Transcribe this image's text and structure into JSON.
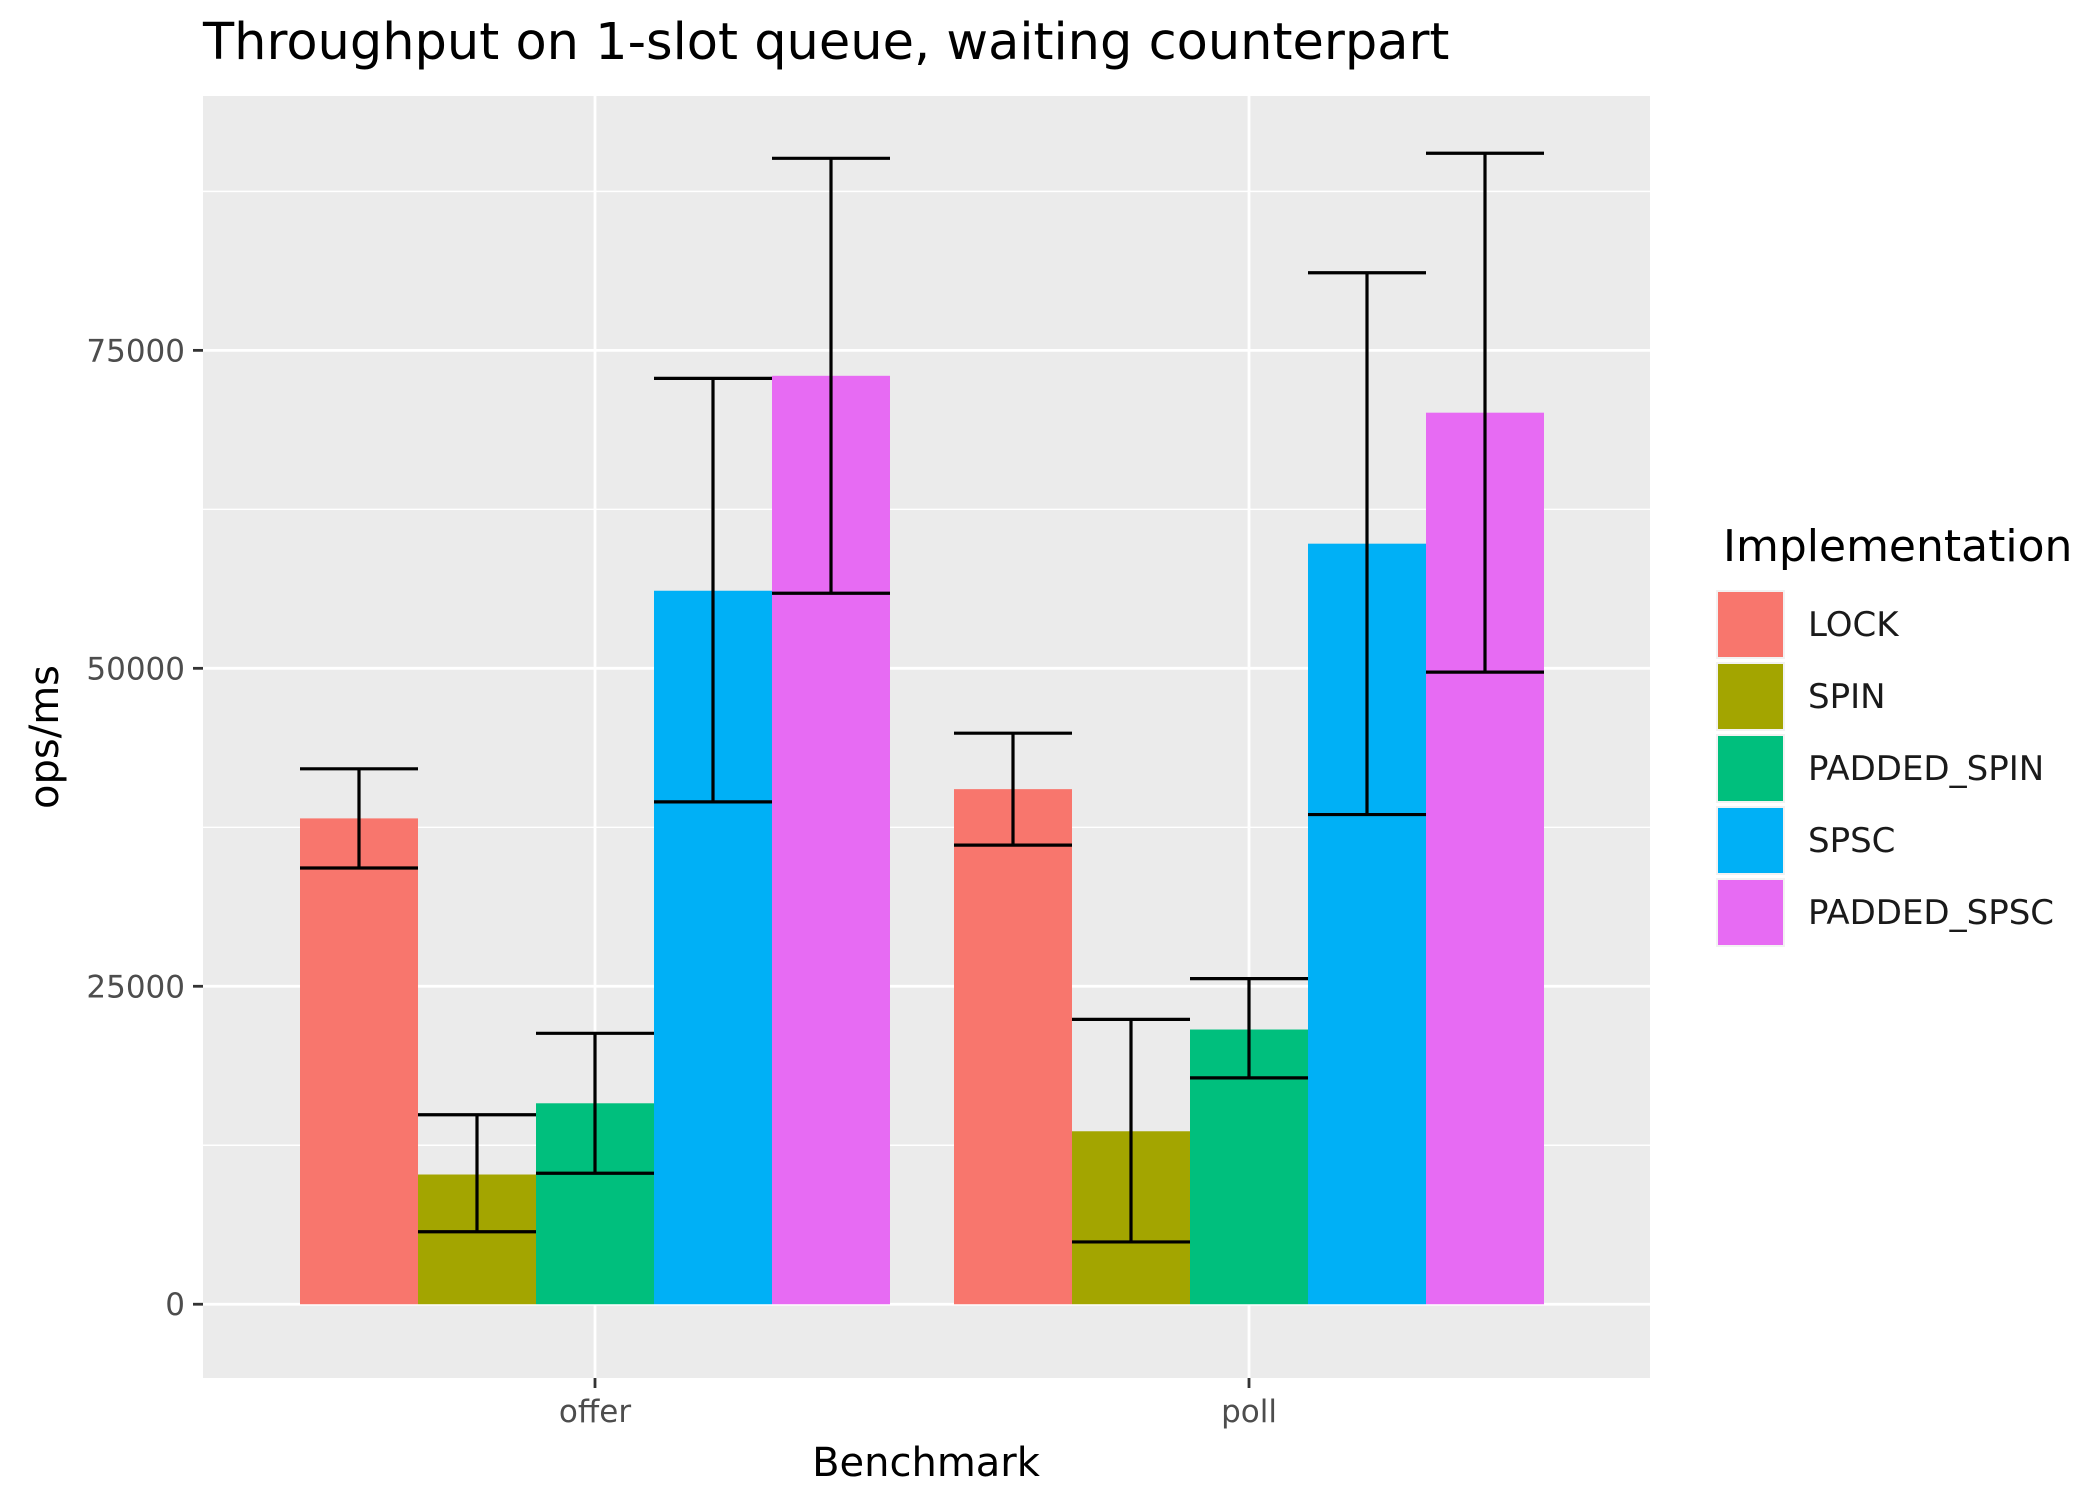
{
  "chart_data": {
    "type": "bar",
    "title": "Throughput on 1-slot queue, waiting counterpart",
    "xlabel": "Benchmark",
    "ylabel": "ops/ms",
    "categories": [
      "offer",
      "poll"
    ],
    "ylim": [
      -5800,
      95000
    ],
    "yticks": [
      0,
      25000,
      50000,
      75000
    ],
    "ytick_labels": [
      "0",
      "25000",
      "50000",
      "75000"
    ],
    "grid": true,
    "legend": {
      "title": "Implementation",
      "position": "right"
    },
    "series": [
      {
        "name": "LOCK",
        "color": "#F8766D",
        "values": [
          38200,
          40500
        ],
        "err_low": [
          34300,
          36100
        ],
        "err_high": [
          42100,
          44900
        ]
      },
      {
        "name": "SPIN",
        "color": "#A3A500",
        "values": [
          10200,
          13600
        ],
        "err_low": [
          5700,
          4900
        ],
        "err_high": [
          14900,
          22400
        ]
      },
      {
        "name": "PADDED_SPIN",
        "color": "#00BF7D",
        "values": [
          15800,
          21600
        ],
        "err_low": [
          10300,
          17800
        ],
        "err_high": [
          21300,
          25600
        ]
      },
      {
        "name": "SPSC",
        "color": "#00B0F6",
        "values": [
          56100,
          59800
        ],
        "err_low": [
          39500,
          38500
        ],
        "err_high": [
          72800,
          81100
        ]
      },
      {
        "name": "PADDED_SPSC",
        "color": "#E76BF3",
        "values": [
          73000,
          70100
        ],
        "err_low": [
          55900,
          49700
        ],
        "err_high": [
          90100,
          90500
        ]
      }
    ]
  }
}
